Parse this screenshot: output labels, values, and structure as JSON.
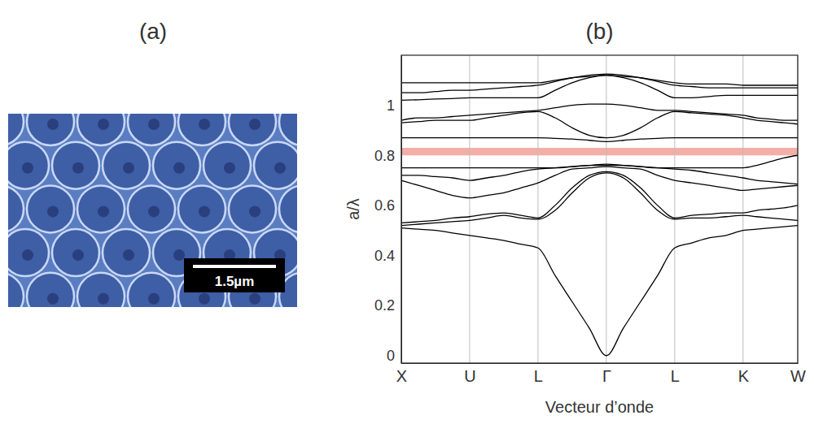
{
  "image": {
    "label": "(a)",
    "scale_bar": "1.5µm"
  },
  "chart_data": {
    "type": "line",
    "title": "(b)",
    "x_label": "Vecteur d’onde",
    "y_label": "a/λ",
    "color": "#000000",
    "grid": true,
    "xlim": [
      0,
      5.8
    ],
    "ylim": [
      -0.03,
      1.2
    ],
    "xticks": [
      {
        "value": 0,
        "label": "X"
      },
      {
        "value": 1,
        "label": "U"
      },
      {
        "value": 2,
        "label": "L"
      },
      {
        "value": 3,
        "label": "Γ"
      },
      {
        "value": 4,
        "label": "L"
      },
      {
        "value": 5,
        "label": "K"
      },
      {
        "value": 5.8,
        "label": "W"
      }
    ],
    "yticks": [
      0,
      0.2,
      0.4,
      0.6,
      0.8,
      1
    ],
    "highlight": [
      0.8,
      0.83
    ],
    "x": [
      0,
      0.25,
      0.5,
      0.75,
      1,
      1.25,
      1.5,
      1.75,
      2,
      2.25,
      2.5,
      2.75,
      3,
      3.25,
      3.5,
      3.75,
      4,
      4.25,
      4.5,
      4.75,
      5,
      5.2,
      5.4,
      5.6,
      5.8
    ],
    "series": [
      {
        "values": [
          0.51,
          0.505,
          0.5,
          0.49,
          0.48,
          0.47,
          0.46,
          0.445,
          0.43,
          0.32,
          0.215,
          0.11,
          0,
          0.11,
          0.215,
          0.32,
          0.43,
          0.45,
          0.47,
          0.48,
          0.5,
          0.505,
          0.51,
          0.515,
          0.52
        ]
      },
      {
        "values": [
          0.52,
          0.525,
          0.53,
          0.535,
          0.54,
          0.55,
          0.56,
          0.55,
          0.545,
          0.58,
          0.65,
          0.71,
          0.73,
          0.71,
          0.65,
          0.58,
          0.545,
          0.55,
          0.55,
          0.555,
          0.56,
          0.555,
          0.55,
          0.545,
          0.54
        ]
      },
      {
        "values": [
          0.53,
          0.535,
          0.54,
          0.55,
          0.555,
          0.565,
          0.57,
          0.56,
          0.55,
          0.6,
          0.67,
          0.72,
          0.735,
          0.72,
          0.67,
          0.6,
          0.55,
          0.56,
          0.565,
          0.57,
          0.57,
          0.58,
          0.585,
          0.59,
          0.6
        ]
      },
      {
        "values": [
          0.7,
          0.68,
          0.66,
          0.64,
          0.63,
          0.64,
          0.65,
          0.67,
          0.69,
          0.72,
          0.745,
          0.75,
          0.755,
          0.75,
          0.745,
          0.72,
          0.7,
          0.69,
          0.68,
          0.67,
          0.66,
          0.665,
          0.67,
          0.675,
          0.68
        ]
      },
      {
        "values": [
          0.72,
          0.72,
          0.715,
          0.71,
          0.7,
          0.71,
          0.72,
          0.735,
          0.745,
          0.75,
          0.755,
          0.76,
          0.76,
          0.76,
          0.755,
          0.75,
          0.745,
          0.74,
          0.73,
          0.72,
          0.71,
          0.7,
          0.695,
          0.69,
          0.685
        ]
      },
      {
        "values": [
          0.75,
          0.75,
          0.75,
          0.75,
          0.75,
          0.75,
          0.75,
          0.75,
          0.75,
          0.75,
          0.755,
          0.76,
          0.765,
          0.76,
          0.755,
          0.75,
          0.75,
          0.75,
          0.75,
          0.75,
          0.75,
          0.76,
          0.775,
          0.79,
          0.8
        ]
      },
      {
        "values": [
          0.87,
          0.87,
          0.87,
          0.87,
          0.87,
          0.87,
          0.87,
          0.87,
          0.87,
          0.868,
          0.865,
          0.86,
          0.855,
          0.86,
          0.865,
          0.868,
          0.87,
          0.87,
          0.87,
          0.87,
          0.87,
          0.87,
          0.87,
          0.87,
          0.87
        ]
      },
      {
        "values": [
          0.93,
          0.935,
          0.94,
          0.94,
          0.94,
          0.95,
          0.96,
          0.97,
          0.975,
          0.95,
          0.91,
          0.88,
          0.87,
          0.88,
          0.91,
          0.95,
          0.975,
          0.97,
          0.965,
          0.96,
          0.95,
          0.94,
          0.935,
          0.93,
          0.925
        ]
      },
      {
        "values": [
          0.94,
          0.95,
          0.95,
          0.955,
          0.96,
          0.965,
          0.97,
          0.975,
          0.98,
          0.99,
          1.0,
          1.005,
          1.005,
          1.0,
          0.99,
          0.98,
          0.98,
          0.975,
          0.97,
          0.965,
          0.96,
          0.95,
          0.945,
          0.94,
          0.94
        ]
      },
      {
        "values": [
          1.02,
          1.022,
          1.025,
          1.027,
          1.03,
          1.03,
          1.03,
          1.03,
          1.03,
          1.06,
          1.09,
          1.11,
          1.12,
          1.11,
          1.09,
          1.06,
          1.03,
          1.03,
          1.035,
          1.04,
          1.04,
          1.04,
          1.04,
          1.04,
          1.04
        ]
      },
      {
        "values": [
          1.05,
          1.05,
          1.055,
          1.06,
          1.06,
          1.065,
          1.07,
          1.075,
          1.08,
          1.095,
          1.11,
          1.115,
          1.12,
          1.115,
          1.11,
          1.095,
          1.08,
          1.075,
          1.07,
          1.07,
          1.07,
          1.07,
          1.07,
          1.07,
          1.07
        ]
      },
      {
        "values": [
          1.09,
          1.09,
          1.09,
          1.09,
          1.09,
          1.09,
          1.09,
          1.09,
          1.09,
          1.1,
          1.11,
          1.12,
          1.125,
          1.12,
          1.11,
          1.1,
          1.09,
          1.085,
          1.085,
          1.085,
          1.08,
          1.08,
          1.08,
          1.08,
          1.08
        ]
      }
    ]
  }
}
